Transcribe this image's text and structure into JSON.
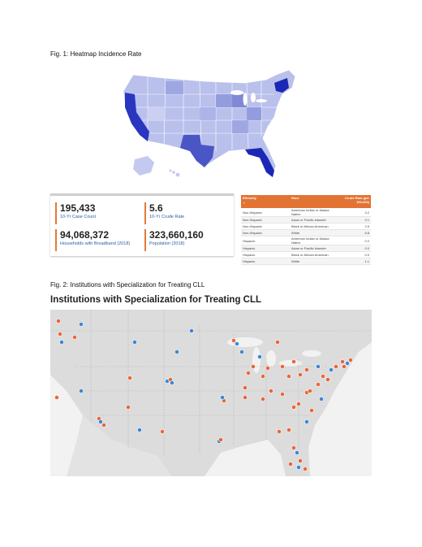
{
  "fig1": {
    "caption": "Fig. 1: Heatmap Incidence Rate",
    "stats": [
      {
        "value": "195,433",
        "label": "10-Yr Case Count"
      },
      {
        "value": "5.6",
        "label": "10-Yr Crude Rate"
      },
      {
        "value": "94,068,372",
        "label": "Households with Broadband (2018)"
      },
      {
        "value": "323,660,160",
        "label": "Population (2018)"
      }
    ],
    "table": {
      "headers": [
        "Ethnicity",
        "Race",
        "Crude Rate (per 100,000)"
      ],
      "rows": [
        [
          "Non-Hispanic",
          "American Indian or Alaska Native",
          "3.2"
        ],
        [
          "Non-Hispanic",
          "Asian or Pacific Islander",
          "0.1"
        ],
        [
          "Non-Hispanic",
          "Black or African American",
          "2.5"
        ],
        [
          "Non-Hispanic",
          "White",
          "6.8"
        ],
        [
          "Hispanic",
          "American Indian or Alaska Native",
          "0.0"
        ],
        [
          "Hispanic",
          "Asian or Pacific Islander",
          "0.0"
        ],
        [
          "Hispanic",
          "Black or African American",
          "0.0"
        ],
        [
          "Hispanic",
          "White",
          "1.1"
        ]
      ]
    },
    "colors": {
      "light": "#d9ddf5",
      "mid": "#8c95da",
      "dark": "#1b27b5",
      "accent": "#e07a3a"
    }
  },
  "fig2": {
    "caption": "Fig. 2: Institutions with Specialization for Treating CLL",
    "title": "Institutions with Specialization for Treating CLL",
    "colors": {
      "orange": "#e8663a",
      "blue": "#3d86d6",
      "land": "#dcdcdc",
      "water": "#f2f2f2"
    }
  }
}
